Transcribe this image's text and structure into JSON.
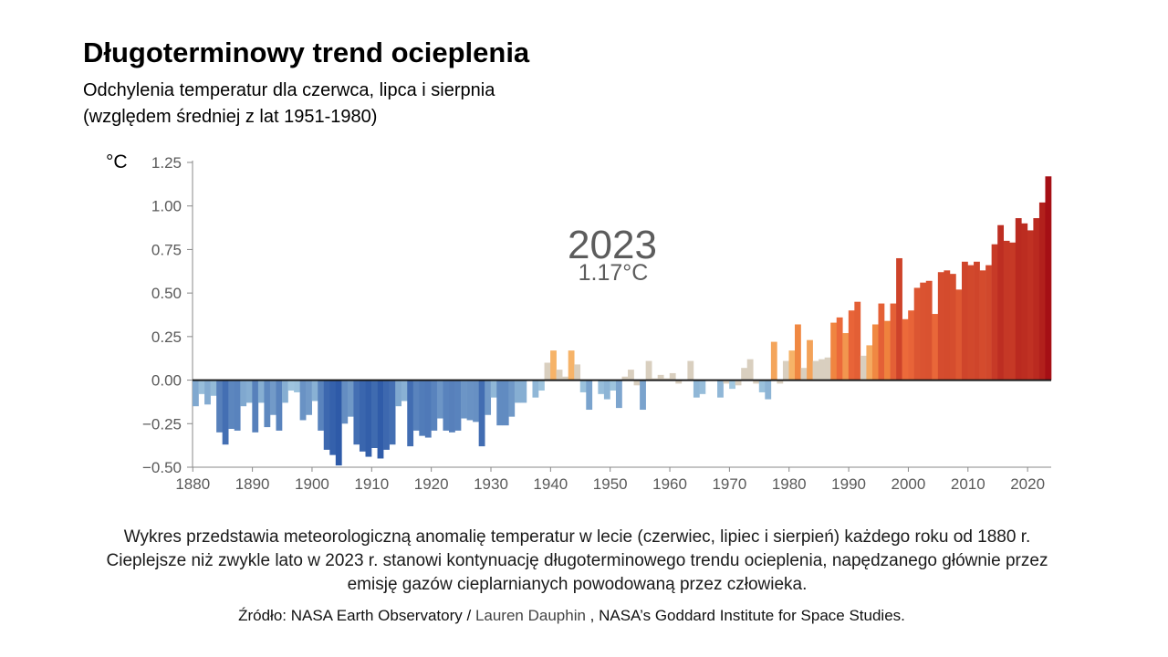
{
  "title": "Długoterminowy trend ocieplenia",
  "subtitle_line1": "Odchylenia temperatur dla czerwca, lipca i sierpnia",
  "subtitle_line2": "(względem średniej z lat 1951-1980)",
  "unit": "°C",
  "caption": "Wykres przedstawia meteorologiczną anomalię temperatur w lecie (czerwiec, lipiec i sierpień) każdego roku od 1880 r. Cieplejsze niż zwykle lato w 2023 r. stanowi kontynuację długoterminowego trendu ocieplenia, napędzanego głównie przez emisję gazów cieplarnianych powodowaną przez człowieka.",
  "source": {
    "prefix": "Źródło: NASA Earth Observatory /",
    "author": "Lauren Dauphin",
    "suffix": ", NASA’s Goddard Institute for Space Studies."
  },
  "chart_data": {
    "type": "bar",
    "x_start": 1880,
    "x_end": 2023,
    "ylim": [
      -0.5,
      1.25
    ],
    "yticks": [
      "1.25",
      "1.00",
      "0.75",
      "0.50",
      "0.25",
      "0.00",
      "−0.25",
      "−0.50"
    ],
    "ytick_values": [
      1.25,
      1.0,
      0.75,
      0.5,
      0.25,
      0.0,
      -0.25,
      -0.5
    ],
    "xticks": [
      1880,
      1890,
      1900,
      1910,
      1920,
      1930,
      1940,
      1950,
      1960,
      1970,
      1980,
      1990,
      2000,
      2010,
      2020
    ],
    "highlight": {
      "year": "2023",
      "value": "1.17°C"
    },
    "color_scale": {
      "cold": "#2e5aa8",
      "neutral": "#d9cfbf",
      "warm": "#f6b66a",
      "hot": "#a50f15"
    },
    "values": [
      -0.15,
      -0.08,
      -0.14,
      -0.09,
      -0.3,
      -0.37,
      -0.28,
      -0.29,
      -0.15,
      -0.13,
      -0.3,
      -0.13,
      -0.27,
      -0.2,
      -0.29,
      -0.13,
      -0.06,
      -0.07,
      -0.23,
      -0.2,
      -0.12,
      -0.29,
      -0.4,
      -0.43,
      -0.49,
      -0.25,
      -0.21,
      -0.37,
      -0.41,
      -0.44,
      -0.39,
      -0.45,
      -0.4,
      -0.37,
      -0.15,
      -0.12,
      -0.38,
      -0.29,
      -0.32,
      -0.33,
      -0.29,
      -0.22,
      -0.29,
      -0.3,
      -0.29,
      -0.22,
      -0.23,
      -0.24,
      -0.38,
      -0.2,
      -0.1,
      -0.26,
      -0.26,
      -0.21,
      -0.13,
      -0.13,
      0.0,
      -0.1,
      -0.06,
      0.1,
      0.17,
      0.06,
      0.02,
      0.17,
      0.09,
      -0.07,
      -0.17,
      0.0,
      -0.08,
      -0.11,
      -0.06,
      -0.16,
      0.02,
      0.06,
      -0.03,
      -0.17,
      0.11,
      0.01,
      0.03,
      0.01,
      0.04,
      -0.02,
      0.0,
      0.11,
      -0.1,
      -0.08,
      0.0,
      0.0,
      -0.1,
      -0.02,
      -0.05,
      -0.03,
      0.07,
      0.12,
      -0.02,
      -0.07,
      -0.11,
      0.22,
      -0.02,
      0.11,
      0.17,
      0.32,
      0.07,
      0.23,
      0.11,
      0.12,
      0.13,
      0.33,
      0.36,
      0.27,
      0.4,
      0.45,
      0.14,
      0.2,
      0.32,
      0.44,
      0.34,
      0.44,
      0.7,
      0.35,
      0.4,
      0.53,
      0.56,
      0.57,
      0.38,
      0.62,
      0.63,
      0.61,
      0.52,
      0.68,
      0.66,
      0.68,
      0.63,
      0.66,
      0.78,
      0.89,
      0.8,
      0.79,
      0.93,
      0.9,
      0.86,
      0.93,
      1.02,
      1.17
    ]
  }
}
